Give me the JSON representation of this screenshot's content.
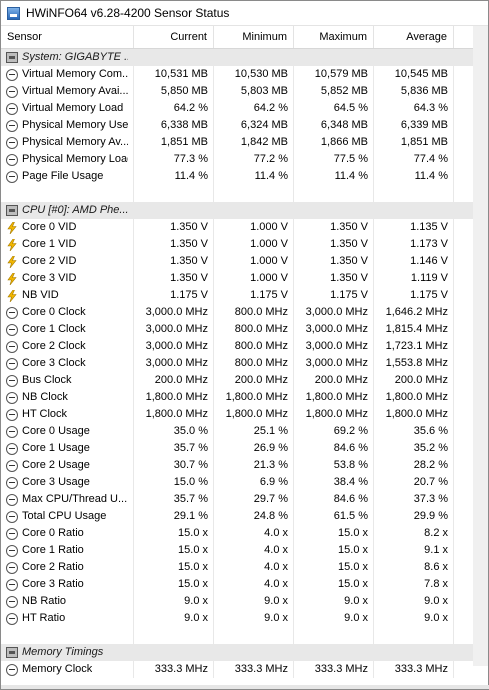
{
  "window": {
    "title": "HWiNFO64 v6.28-4200 Sensor Status"
  },
  "columns": [
    "Sensor",
    "Current",
    "Minimum",
    "Maximum",
    "Average"
  ],
  "rows": [
    {
      "type": "group",
      "label": "System: GIGABYTE ...",
      "icon": "group-icon"
    },
    {
      "type": "data",
      "icon": "gauge-icon",
      "label": "Virtual Memory Com...",
      "cur": "10,531 MB",
      "min": "10,530 MB",
      "max": "10,579 MB",
      "avg": "10,545 MB"
    },
    {
      "type": "data",
      "icon": "gauge-icon",
      "label": "Virtual Memory Avai...",
      "cur": "5,850 MB",
      "min": "5,803 MB",
      "max": "5,852 MB",
      "avg": "5,836 MB"
    },
    {
      "type": "data",
      "icon": "gauge-icon",
      "label": "Virtual Memory Load",
      "cur": "64.2 %",
      "min": "64.2 %",
      "max": "64.5 %",
      "avg": "64.3 %"
    },
    {
      "type": "data",
      "icon": "gauge-icon",
      "label": "Physical Memory Used",
      "cur": "6,338 MB",
      "min": "6,324 MB",
      "max": "6,348 MB",
      "avg": "6,339 MB"
    },
    {
      "type": "data",
      "icon": "gauge-icon",
      "label": "Physical Memory Av...",
      "cur": "1,851 MB",
      "min": "1,842 MB",
      "max": "1,866 MB",
      "avg": "1,851 MB"
    },
    {
      "type": "data",
      "icon": "gauge-icon",
      "label": "Physical Memory Load",
      "cur": "77.3 %",
      "min": "77.2 %",
      "max": "77.5 %",
      "avg": "77.4 %"
    },
    {
      "type": "data",
      "icon": "gauge-icon",
      "label": "Page File Usage",
      "cur": "11.4 %",
      "min": "11.4 %",
      "max": "11.4 %",
      "avg": "11.4 %"
    },
    {
      "type": "blank"
    },
    {
      "type": "group",
      "label": "CPU [#0]: AMD Phe...",
      "icon": "group-icon"
    },
    {
      "type": "data",
      "icon": "lightning-icon",
      "label": "Core 0 VID",
      "cur": "1.350 V",
      "min": "1.000 V",
      "max": "1.350 V",
      "avg": "1.135 V"
    },
    {
      "type": "data",
      "icon": "lightning-icon",
      "label": "Core 1 VID",
      "cur": "1.350 V",
      "min": "1.000 V",
      "max": "1.350 V",
      "avg": "1.173 V"
    },
    {
      "type": "data",
      "icon": "lightning-icon",
      "label": "Core 2 VID",
      "cur": "1.350 V",
      "min": "1.000 V",
      "max": "1.350 V",
      "avg": "1.146 V"
    },
    {
      "type": "data",
      "icon": "lightning-icon",
      "label": "Core 3 VID",
      "cur": "1.350 V",
      "min": "1.000 V",
      "max": "1.350 V",
      "avg": "1.119 V"
    },
    {
      "type": "data",
      "icon": "lightning-icon",
      "label": "NB VID",
      "cur": "1.175 V",
      "min": "1.175 V",
      "max": "1.175 V",
      "avg": "1.175 V"
    },
    {
      "type": "data",
      "icon": "gauge-icon",
      "label": "Core 0 Clock",
      "cur": "3,000.0 MHz",
      "min": "800.0 MHz",
      "max": "3,000.0 MHz",
      "avg": "1,646.2 MHz"
    },
    {
      "type": "data",
      "icon": "gauge-icon",
      "label": "Core 1 Clock",
      "cur": "3,000.0 MHz",
      "min": "800.0 MHz",
      "max": "3,000.0 MHz",
      "avg": "1,815.4 MHz"
    },
    {
      "type": "data",
      "icon": "gauge-icon",
      "label": "Core 2 Clock",
      "cur": "3,000.0 MHz",
      "min": "800.0 MHz",
      "max": "3,000.0 MHz",
      "avg": "1,723.1 MHz"
    },
    {
      "type": "data",
      "icon": "gauge-icon",
      "label": "Core 3 Clock",
      "cur": "3,000.0 MHz",
      "min": "800.0 MHz",
      "max": "3,000.0 MHz",
      "avg": "1,553.8 MHz"
    },
    {
      "type": "data",
      "icon": "gauge-icon",
      "label": "Bus Clock",
      "cur": "200.0 MHz",
      "min": "200.0 MHz",
      "max": "200.0 MHz",
      "avg": "200.0 MHz"
    },
    {
      "type": "data",
      "icon": "gauge-icon",
      "label": "NB Clock",
      "cur": "1,800.0 MHz",
      "min": "1,800.0 MHz",
      "max": "1,800.0 MHz",
      "avg": "1,800.0 MHz"
    },
    {
      "type": "data",
      "icon": "gauge-icon",
      "label": "HT Clock",
      "cur": "1,800.0 MHz",
      "min": "1,800.0 MHz",
      "max": "1,800.0 MHz",
      "avg": "1,800.0 MHz"
    },
    {
      "type": "data",
      "icon": "gauge-icon",
      "label": "Core 0 Usage",
      "cur": "35.0 %",
      "min": "25.1 %",
      "max": "69.2 %",
      "avg": "35.6 %"
    },
    {
      "type": "data",
      "icon": "gauge-icon",
      "label": "Core 1 Usage",
      "cur": "35.7 %",
      "min": "26.9 %",
      "max": "84.6 %",
      "avg": "35.2 %"
    },
    {
      "type": "data",
      "icon": "gauge-icon",
      "label": "Core 2 Usage",
      "cur": "30.7 %",
      "min": "21.3 %",
      "max": "53.8 %",
      "avg": "28.2 %"
    },
    {
      "type": "data",
      "icon": "gauge-icon",
      "label": "Core 3 Usage",
      "cur": "15.0 %",
      "min": "6.9 %",
      "max": "38.4 %",
      "avg": "20.7 %"
    },
    {
      "type": "data",
      "icon": "gauge-icon",
      "label": "Max CPU/Thread U...",
      "cur": "35.7 %",
      "min": "29.7 %",
      "max": "84.6 %",
      "avg": "37.3 %"
    },
    {
      "type": "data",
      "icon": "gauge-icon",
      "label": "Total CPU Usage",
      "cur": "29.1 %",
      "min": "24.8 %",
      "max": "61.5 %",
      "avg": "29.9 %"
    },
    {
      "type": "data",
      "icon": "gauge-icon",
      "label": "Core 0 Ratio",
      "cur": "15.0 x",
      "min": "4.0 x",
      "max": "15.0 x",
      "avg": "8.2 x"
    },
    {
      "type": "data",
      "icon": "gauge-icon",
      "label": "Core 1 Ratio",
      "cur": "15.0 x",
      "min": "4.0 x",
      "max": "15.0 x",
      "avg": "9.1 x"
    },
    {
      "type": "data",
      "icon": "gauge-icon",
      "label": "Core 2 Ratio",
      "cur": "15.0 x",
      "min": "4.0 x",
      "max": "15.0 x",
      "avg": "8.6 x"
    },
    {
      "type": "data",
      "icon": "gauge-icon",
      "label": "Core 3 Ratio",
      "cur": "15.0 x",
      "min": "4.0 x",
      "max": "15.0 x",
      "avg": "7.8 x"
    },
    {
      "type": "data",
      "icon": "gauge-icon",
      "label": "NB Ratio",
      "cur": "9.0 x",
      "min": "9.0 x",
      "max": "9.0 x",
      "avg": "9.0 x"
    },
    {
      "type": "data",
      "icon": "gauge-icon",
      "label": "HT Ratio",
      "cur": "9.0 x",
      "min": "9.0 x",
      "max": "9.0 x",
      "avg": "9.0 x"
    },
    {
      "type": "blank"
    },
    {
      "type": "group",
      "label": "Memory Timings",
      "icon": "group-icon"
    },
    {
      "type": "data",
      "icon": "gauge-icon",
      "label": "Memory Clock",
      "cur": "333.3 MHz",
      "min": "333.3 MHz",
      "max": "333.3 MHz",
      "avg": "333.3 MHz"
    }
  ]
}
